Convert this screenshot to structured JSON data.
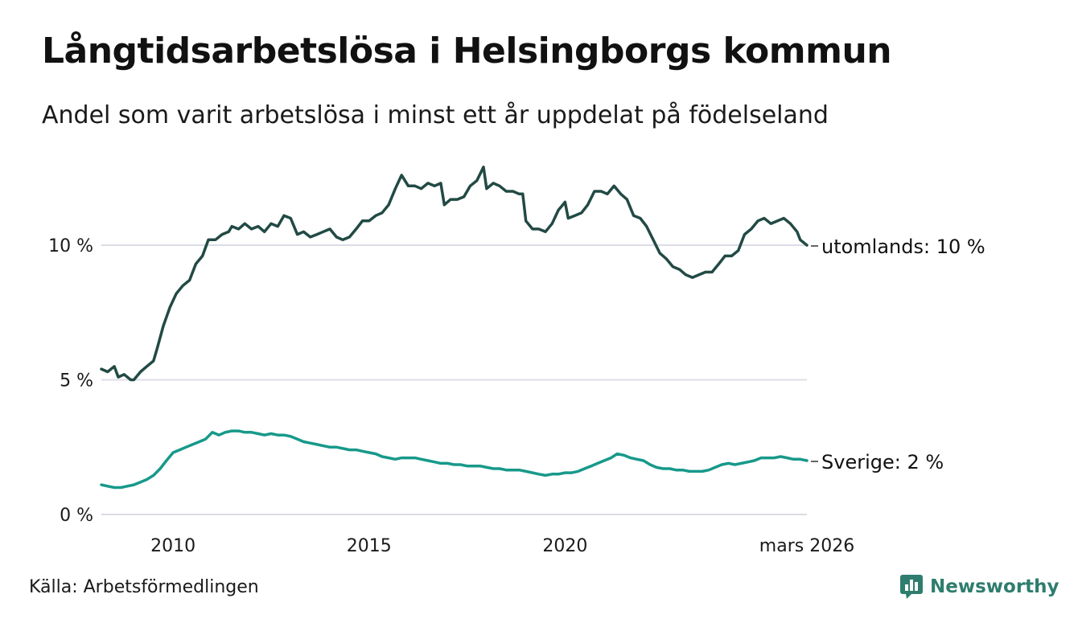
{
  "title": "Långtidsarbetslösa i Helsingborgs kommun",
  "subtitle": "Andel som varit arbetslösa i minst ett år uppdelat på födelseland",
  "source": "Källa: Arbetsförmedlingen",
  "brand": "Newsworthy",
  "chart_data": {
    "type": "line",
    "title": "Långtidsarbetslösa i Helsingborgs kommun",
    "xlabel": "",
    "ylabel": "",
    "xlim": [
      2008.17,
      2026.17
    ],
    "ylim": [
      0,
      13
    ],
    "grid": true,
    "y_ticks": [
      {
        "value": 0,
        "label": "0 %"
      },
      {
        "value": 5,
        "label": "5 %"
      },
      {
        "value": 10,
        "label": "10 %"
      }
    ],
    "x_ticks": [
      {
        "value": 2010,
        "label": "2010"
      },
      {
        "value": 2015,
        "label": "2015"
      },
      {
        "value": 2020,
        "label": "2020"
      },
      {
        "value": 2026.17,
        "label": "mars 2026"
      }
    ],
    "series": [
      {
        "name": "utomlands",
        "end_label": "utomlands: 10 %",
        "color": "#224a44",
        "points": [
          [
            2008.17,
            5.4
          ],
          [
            2008.33,
            5.3
          ],
          [
            2008.5,
            5.5
          ],
          [
            2008.6,
            5.1
          ],
          [
            2008.75,
            5.2
          ],
          [
            2008.92,
            5.0
          ],
          [
            2009.0,
            5.0
          ],
          [
            2009.17,
            5.3
          ],
          [
            2009.33,
            5.5
          ],
          [
            2009.5,
            5.7
          ],
          [
            2009.6,
            6.2
          ],
          [
            2009.75,
            7.0
          ],
          [
            2009.92,
            7.7
          ],
          [
            2010.08,
            8.2
          ],
          [
            2010.25,
            8.5
          ],
          [
            2010.42,
            8.7
          ],
          [
            2010.58,
            9.3
          ],
          [
            2010.75,
            9.6
          ],
          [
            2010.9,
            10.2
          ],
          [
            2011.08,
            10.2
          ],
          [
            2011.25,
            10.4
          ],
          [
            2011.42,
            10.5
          ],
          [
            2011.5,
            10.7
          ],
          [
            2011.67,
            10.6
          ],
          [
            2011.83,
            10.8
          ],
          [
            2012.0,
            10.6
          ],
          [
            2012.17,
            10.7
          ],
          [
            2012.33,
            10.5
          ],
          [
            2012.5,
            10.8
          ],
          [
            2012.67,
            10.7
          ],
          [
            2012.83,
            11.1
          ],
          [
            2013.0,
            11.0
          ],
          [
            2013.17,
            10.4
          ],
          [
            2013.33,
            10.5
          ],
          [
            2013.5,
            10.3
          ],
          [
            2013.67,
            10.4
          ],
          [
            2013.83,
            10.5
          ],
          [
            2014.0,
            10.6
          ],
          [
            2014.17,
            10.3
          ],
          [
            2014.33,
            10.2
          ],
          [
            2014.5,
            10.3
          ],
          [
            2014.67,
            10.6
          ],
          [
            2014.83,
            10.9
          ],
          [
            2015.0,
            10.9
          ],
          [
            2015.17,
            11.1
          ],
          [
            2015.33,
            11.2
          ],
          [
            2015.5,
            11.5
          ],
          [
            2015.67,
            12.1
          ],
          [
            2015.83,
            12.6
          ],
          [
            2016.0,
            12.2
          ],
          [
            2016.17,
            12.2
          ],
          [
            2016.33,
            12.1
          ],
          [
            2016.5,
            12.3
          ],
          [
            2016.67,
            12.2
          ],
          [
            2016.83,
            12.3
          ],
          [
            2016.92,
            11.5
          ],
          [
            2017.08,
            11.7
          ],
          [
            2017.25,
            11.7
          ],
          [
            2017.42,
            11.8
          ],
          [
            2017.58,
            12.2
          ],
          [
            2017.75,
            12.4
          ],
          [
            2017.92,
            12.9
          ],
          [
            2018.0,
            12.1
          ],
          [
            2018.17,
            12.3
          ],
          [
            2018.33,
            12.2
          ],
          [
            2018.5,
            12.0
          ],
          [
            2018.67,
            12.0
          ],
          [
            2018.83,
            11.9
          ],
          [
            2018.92,
            11.9
          ],
          [
            2019.0,
            10.9
          ],
          [
            2019.17,
            10.6
          ],
          [
            2019.33,
            10.6
          ],
          [
            2019.5,
            10.5
          ],
          [
            2019.67,
            10.8
          ],
          [
            2019.83,
            11.3
          ],
          [
            2020.0,
            11.6
          ],
          [
            2020.08,
            11.0
          ],
          [
            2020.25,
            11.1
          ],
          [
            2020.42,
            11.2
          ],
          [
            2020.58,
            11.5
          ],
          [
            2020.75,
            12.0
          ],
          [
            2020.92,
            12.0
          ],
          [
            2021.08,
            11.9
          ],
          [
            2021.25,
            12.2
          ],
          [
            2021.42,
            11.9
          ],
          [
            2021.58,
            11.7
          ],
          [
            2021.75,
            11.1
          ],
          [
            2021.92,
            11.0
          ],
          [
            2022.08,
            10.7
          ],
          [
            2022.25,
            10.2
          ],
          [
            2022.42,
            9.7
          ],
          [
            2022.58,
            9.5
          ],
          [
            2022.75,
            9.2
          ],
          [
            2022.92,
            9.1
          ],
          [
            2023.08,
            8.9
          ],
          [
            2023.25,
            8.8
          ],
          [
            2023.42,
            8.9
          ],
          [
            2023.58,
            9.0
          ],
          [
            2023.75,
            9.0
          ],
          [
            2023.92,
            9.3
          ],
          [
            2024.08,
            9.6
          ],
          [
            2024.25,
            9.6
          ],
          [
            2024.42,
            9.8
          ],
          [
            2024.58,
            10.4
          ],
          [
            2024.75,
            10.6
          ],
          [
            2024.92,
            10.9
          ],
          [
            2025.08,
            11.0
          ],
          [
            2025.25,
            10.8
          ],
          [
            2025.42,
            10.9
          ],
          [
            2025.58,
            11.0
          ],
          [
            2025.75,
            10.8
          ],
          [
            2025.92,
            10.5
          ],
          [
            2026.0,
            10.2
          ],
          [
            2026.17,
            10.0
          ]
        ]
      },
      {
        "name": "Sverige",
        "end_label": "Sverige:  2 %",
        "color": "#17998a",
        "points": [
          [
            2008.17,
            1.1
          ],
          [
            2008.33,
            1.05
          ],
          [
            2008.5,
            1.0
          ],
          [
            2008.67,
            1.0
          ],
          [
            2008.83,
            1.05
          ],
          [
            2009.0,
            1.1
          ],
          [
            2009.17,
            1.2
          ],
          [
            2009.33,
            1.3
          ],
          [
            2009.5,
            1.45
          ],
          [
            2009.67,
            1.7
          ],
          [
            2009.83,
            2.0
          ],
          [
            2010.0,
            2.3
          ],
          [
            2010.17,
            2.4
          ],
          [
            2010.33,
            2.5
          ],
          [
            2010.5,
            2.6
          ],
          [
            2010.67,
            2.7
          ],
          [
            2010.83,
            2.8
          ],
          [
            2011.0,
            3.05
          ],
          [
            2011.17,
            2.95
          ],
          [
            2011.33,
            3.05
          ],
          [
            2011.5,
            3.1
          ],
          [
            2011.67,
            3.1
          ],
          [
            2011.83,
            3.05
          ],
          [
            2012.0,
            3.05
          ],
          [
            2012.17,
            3.0
          ],
          [
            2012.33,
            2.95
          ],
          [
            2012.5,
            3.0
          ],
          [
            2012.67,
            2.95
          ],
          [
            2012.83,
            2.95
          ],
          [
            2013.0,
            2.9
          ],
          [
            2013.17,
            2.8
          ],
          [
            2013.33,
            2.7
          ],
          [
            2013.5,
            2.65
          ],
          [
            2013.67,
            2.6
          ],
          [
            2013.83,
            2.55
          ],
          [
            2014.0,
            2.5
          ],
          [
            2014.17,
            2.5
          ],
          [
            2014.33,
            2.45
          ],
          [
            2014.5,
            2.4
          ],
          [
            2014.67,
            2.4
          ],
          [
            2014.83,
            2.35
          ],
          [
            2015.0,
            2.3
          ],
          [
            2015.17,
            2.25
          ],
          [
            2015.33,
            2.15
          ],
          [
            2015.5,
            2.1
          ],
          [
            2015.67,
            2.05
          ],
          [
            2015.83,
            2.1
          ],
          [
            2016.0,
            2.1
          ],
          [
            2016.17,
            2.1
          ],
          [
            2016.33,
            2.05
          ],
          [
            2016.5,
            2.0
          ],
          [
            2016.67,
            1.95
          ],
          [
            2016.83,
            1.9
          ],
          [
            2017.0,
            1.9
          ],
          [
            2017.17,
            1.85
          ],
          [
            2017.33,
            1.85
          ],
          [
            2017.5,
            1.8
          ],
          [
            2017.67,
            1.8
          ],
          [
            2017.83,
            1.8
          ],
          [
            2018.0,
            1.75
          ],
          [
            2018.17,
            1.7
          ],
          [
            2018.33,
            1.7
          ],
          [
            2018.5,
            1.65
          ],
          [
            2018.67,
            1.65
          ],
          [
            2018.83,
            1.65
          ],
          [
            2019.0,
            1.6
          ],
          [
            2019.17,
            1.55
          ],
          [
            2019.33,
            1.5
          ],
          [
            2019.5,
            1.45
          ],
          [
            2019.67,
            1.5
          ],
          [
            2019.83,
            1.5
          ],
          [
            2020.0,
            1.55
          ],
          [
            2020.17,
            1.55
          ],
          [
            2020.33,
            1.6
          ],
          [
            2020.5,
            1.7
          ],
          [
            2020.67,
            1.8
          ],
          [
            2020.83,
            1.9
          ],
          [
            2021.0,
            2.0
          ],
          [
            2021.17,
            2.1
          ],
          [
            2021.33,
            2.25
          ],
          [
            2021.5,
            2.2
          ],
          [
            2021.67,
            2.1
          ],
          [
            2021.83,
            2.05
          ],
          [
            2022.0,
            2.0
          ],
          [
            2022.17,
            1.85
          ],
          [
            2022.33,
            1.75
          ],
          [
            2022.5,
            1.7
          ],
          [
            2022.67,
            1.7
          ],
          [
            2022.83,
            1.65
          ],
          [
            2023.0,
            1.65
          ],
          [
            2023.17,
            1.6
          ],
          [
            2023.33,
            1.6
          ],
          [
            2023.5,
            1.6
          ],
          [
            2023.67,
            1.65
          ],
          [
            2023.83,
            1.75
          ],
          [
            2024.0,
            1.85
          ],
          [
            2024.17,
            1.9
          ],
          [
            2024.33,
            1.85
          ],
          [
            2024.5,
            1.9
          ],
          [
            2024.67,
            1.95
          ],
          [
            2024.83,
            2.0
          ],
          [
            2025.0,
            2.1
          ],
          [
            2025.17,
            2.1
          ],
          [
            2025.33,
            2.1
          ],
          [
            2025.5,
            2.15
          ],
          [
            2025.67,
            2.1
          ],
          [
            2025.83,
            2.05
          ],
          [
            2026.0,
            2.05
          ],
          [
            2026.17,
            2.0
          ]
        ]
      }
    ]
  }
}
